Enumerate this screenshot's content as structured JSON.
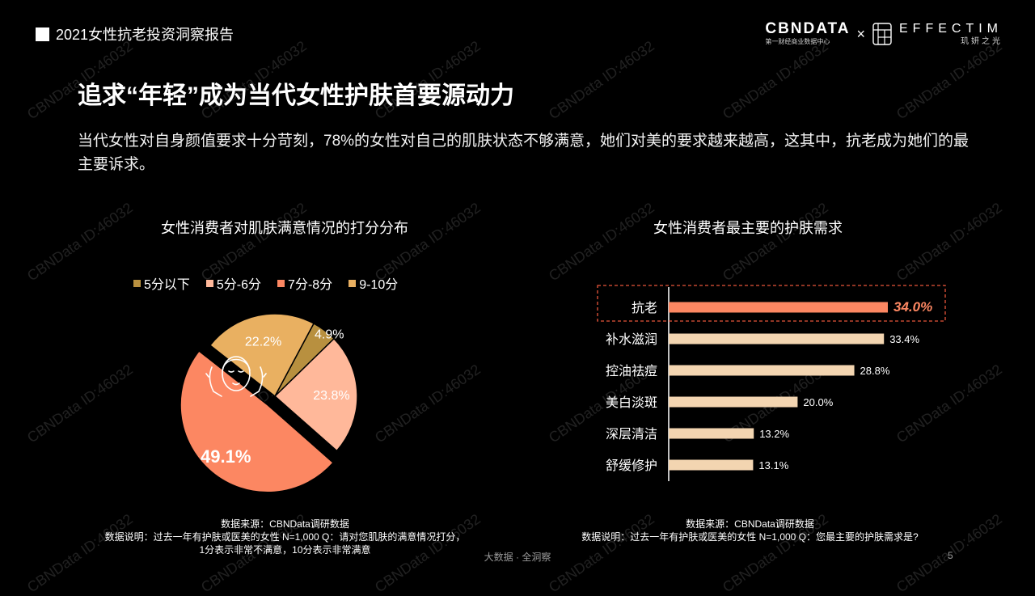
{
  "header": {
    "report_title": "2021女性抗老投资洞察报告"
  },
  "logos": {
    "cbn_main": "CBNDATA",
    "cbn_sub": "第一财经商业数据中心",
    "separator": "×",
    "effectim_main": "EFFECTIM",
    "effectim_sub": "玑妍之光"
  },
  "page": {
    "title": "追求“年轻”成为当代女性护肤首要源动力",
    "description": "当代女性对自身颜值要求十分苛刻，78%的女性对自己的肌肤状态不够满意，她们对美的要求越来越高，这其中，抗老成为她们的最主要诉求。"
  },
  "colors": {
    "below5": "#b8903f",
    "5to6": "#ffb89a",
    "7to8": "#fc8762",
    "9to10": "#e9b061",
    "bar_highlight": "#fc8762",
    "bar_normal": "#f3d5b1",
    "highlight_box": "#e8553a"
  },
  "chart_data": [
    {
      "type": "pie",
      "title": "女性消费者对肌肤满意情况的打分分布",
      "legend": [
        "5分以下",
        "5分-6分",
        "7分-8分",
        "9-10分"
      ],
      "slices": [
        {
          "label": "5分以下",
          "value": 4.9,
          "display": "4.9%"
        },
        {
          "label": "5分-6分",
          "value": 23.8,
          "display": "23.8%"
        },
        {
          "label": "7分-8分",
          "value": 49.1,
          "display": "49.1%"
        },
        {
          "label": "9-10分",
          "value": 22.2,
          "display": "22.2%"
        }
      ],
      "legend_position": "top",
      "icon": "face-care-icon"
    },
    {
      "type": "bar",
      "orientation": "horizontal",
      "title": "女性消费者最主要的护肤需求",
      "categories": [
        "抗老",
        "补水滋润",
        "控油祛痘",
        "美白淡斑",
        "深层清洁",
        "舒缓修护"
      ],
      "values": [
        34.0,
        33.4,
        28.8,
        20.0,
        13.2,
        13.1
      ],
      "labels": [
        "34.0%",
        "33.4%",
        "28.8%",
        "20.0%",
        "13.2%",
        "13.1%"
      ],
      "highlight": "抗老",
      "xlim": [
        0,
        34.0
      ]
    }
  ],
  "notes": {
    "left_source": "数据来源：CBNData调研数据",
    "left_desc_line1": "数据说明：过去一年有护肤或医美的女性 N=1,000 Q：请对您肌肤的满意情况打分，",
    "left_desc_line2": "1分表示非常不满意，10分表示非常满意",
    "right_source": "数据来源：CBNData调研数据",
    "right_desc": "数据说明：过去一年有护肤或医美的女性 N=1,000 Q：您最主要的护肤需求是?"
  },
  "footer": {
    "text": "大数据 · 全洞察",
    "page_number": "5"
  },
  "watermark": {
    "text": "CBNData ID:46032"
  }
}
